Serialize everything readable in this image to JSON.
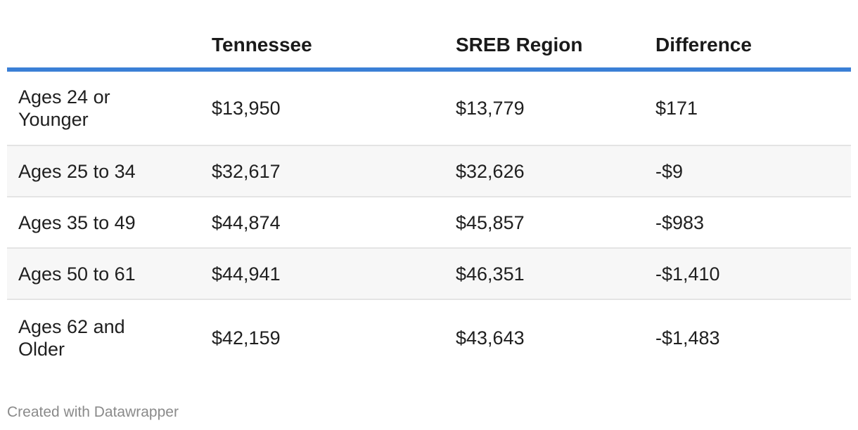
{
  "table": {
    "headers": [
      "",
      "Tennessee",
      "SREB Region",
      "Difference"
    ],
    "rows": [
      {
        "label_line1": "Ages 24 or",
        "label_line2": "Younger",
        "tennessee": "$13,950",
        "sreb": "$13,779",
        "difference": "$171"
      },
      {
        "label": "Ages 25 to 34",
        "tennessee": "$32,617",
        "sreb": "$32,626",
        "difference": "-$9"
      },
      {
        "label": "Ages 35 to 49",
        "tennessee": "$44,874",
        "sreb": "$45,857",
        "difference": "-$983"
      },
      {
        "label": "Ages 50 to 61",
        "tennessee": "$44,941",
        "sreb": "$46,351",
        "difference": "-$1,410"
      },
      {
        "label_line1": "Ages 62 and",
        "label_line2": "Older",
        "tennessee": "$42,159",
        "sreb": "$43,643",
        "difference": "-$1,483"
      }
    ]
  },
  "footer": {
    "credit": "Created with Datawrapper"
  },
  "colors": {
    "header_rule": "#3a7fd6",
    "stripe": "#f7f7f7"
  }
}
